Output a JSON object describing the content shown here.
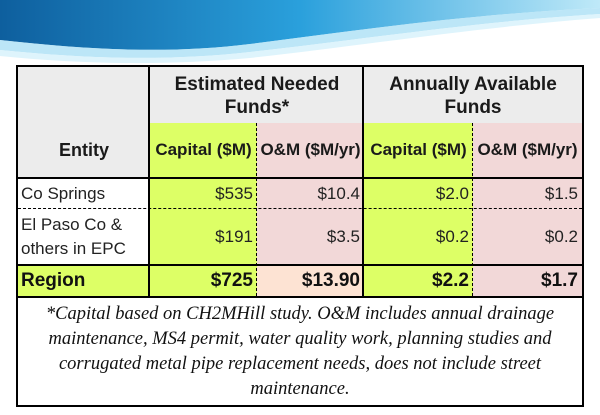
{
  "header": {
    "group_needed": "Estimated Needed Funds*",
    "group_available": "Annually Available Funds",
    "entity": "Entity",
    "capital": "Capital ($M)",
    "om": "O&M ($M/yr)"
  },
  "rows": [
    {
      "entity": "Co Springs",
      "need_capital": "$535",
      "need_om": "$10.4",
      "avail_capital": "$2.0",
      "avail_om": "$1.5"
    },
    {
      "entity": "El Paso Co & others in EPC",
      "need_capital": "$191",
      "need_om": "$3.5",
      "avail_capital": "$0.2",
      "avail_om": "$0.2"
    }
  ],
  "total": {
    "entity": "Region",
    "need_capital": "$725",
    "need_om": "$13.90",
    "avail_capital": "$2.2",
    "avail_om": "$1.7"
  },
  "footnote": "*Capital based on CH2MHill study. O&M includes annual drainage maintenance, MS4 permit, water quality work, planning studies and corrugated metal pipe replacement needs, does not include street maintenance.",
  "colors": {
    "wave_dark": "#1e88c8",
    "wave_light": "#7fd0f0",
    "capital_fill": "#ddff66",
    "om_fill": "#f2d8d8"
  }
}
